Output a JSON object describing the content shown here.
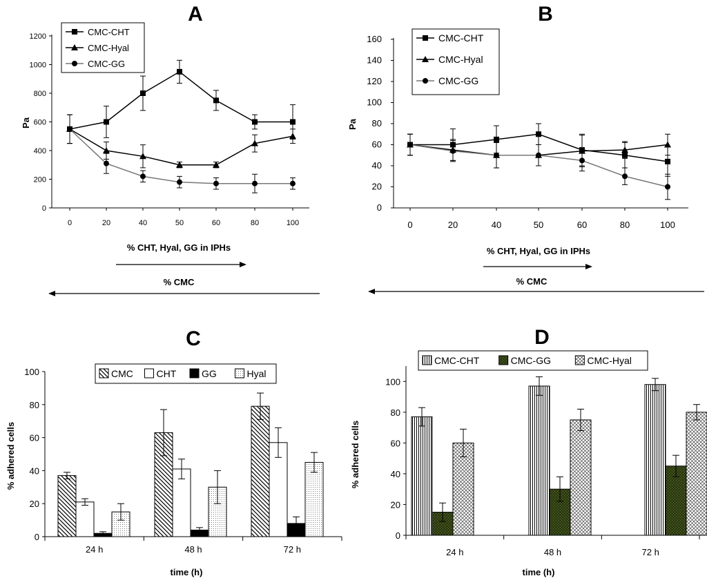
{
  "chart_data": [
    {
      "panel": "A",
      "type": "line",
      "title": "A",
      "xlabel": "% CHT, Hyal, GG in IPHs",
      "ylabel": "Pa",
      "secondary_xlabel": "% CMC",
      "x": [
        0,
        20,
        40,
        50,
        60,
        80,
        100
      ],
      "x_tick_labels": [
        "0",
        "20",
        "40",
        "50",
        "60",
        "80",
        "100"
      ],
      "ylim": [
        0,
        1200
      ],
      "y_ticks": [
        0,
        200,
        400,
        600,
        800,
        1000,
        1200
      ],
      "series": [
        {
          "name": "CMC-CHT",
          "marker": "square",
          "values": [
            550,
            600,
            800,
            950,
            750,
            600,
            600
          ],
          "errors": [
            100,
            110,
            120,
            80,
            70,
            50,
            120
          ]
        },
        {
          "name": "CMC-Hyal",
          "marker": "triangle",
          "values": [
            550,
            400,
            360,
            300,
            300,
            450,
            500
          ],
          "errors": [
            100,
            60,
            80,
            20,
            20,
            60,
            50
          ]
        },
        {
          "name": "CMC-GG",
          "marker": "circle",
          "values": [
            550,
            310,
            220,
            180,
            170,
            170,
            170
          ],
          "errors": [
            100,
            70,
            40,
            40,
            40,
            65,
            40
          ]
        }
      ]
    },
    {
      "panel": "B",
      "type": "line",
      "title": "B",
      "xlabel": "% CHT, Hyal, GG in IPHs",
      "ylabel": "Pa",
      "secondary_xlabel": "% CMC",
      "x": [
        0,
        20,
        40,
        50,
        60,
        80,
        100
      ],
      "x_tick_labels": [
        "0",
        "20",
        "40",
        "50",
        "60",
        "80",
        "100"
      ],
      "ylim": [
        0,
        160
      ],
      "y_ticks": [
        0,
        20,
        40,
        60,
        80,
        100,
        120,
        140,
        160
      ],
      "series": [
        {
          "name": "CMC-CHT",
          "marker": "square",
          "values": [
            60,
            60,
            65,
            70,
            55,
            50,
            44
          ],
          "errors": [
            10,
            15,
            13,
            10,
            15,
            12,
            14
          ]
        },
        {
          "name": "CMC-Hyal",
          "marker": "triangle",
          "values": [
            60,
            55,
            50,
            50,
            54,
            55,
            60
          ],
          "errors": [
            10,
            10,
            12,
            10,
            15,
            8,
            10
          ]
        },
        {
          "name": "CMC-GG",
          "marker": "circle",
          "values": [
            60,
            54,
            50,
            50,
            45,
            30,
            20
          ],
          "errors": [
            10,
            10,
            12,
            10,
            10,
            8,
            12
          ]
        }
      ]
    },
    {
      "panel": "C",
      "type": "bar",
      "title": "C",
      "xlabel": "time (h)",
      "ylabel": "% adhered cells",
      "categories": [
        "24 h",
        "48 h",
        "72 h"
      ],
      "ylim": [
        0,
        100
      ],
      "y_ticks": [
        0,
        20,
        40,
        60,
        80,
        100
      ],
      "series": [
        {
          "name": "CMC",
          "pattern": "diagonal",
          "values": [
            37,
            63,
            79
          ],
          "errors": [
            2,
            14,
            8
          ]
        },
        {
          "name": "CHT",
          "pattern": "white",
          "values": [
            21,
            41,
            57
          ],
          "errors": [
            2,
            6,
            9
          ]
        },
        {
          "name": "GG",
          "pattern": "black",
          "values": [
            2,
            4,
            8
          ],
          "errors": [
            1,
            1.5,
            4
          ]
        },
        {
          "name": "Hyal",
          "pattern": "dots",
          "values": [
            15,
            30,
            45
          ],
          "errors": [
            5,
            10,
            6
          ]
        }
      ]
    },
    {
      "panel": "D",
      "type": "bar",
      "title": "D",
      "xlabel": "time (h)",
      "ylabel": "% adhered cells",
      "categories": [
        "24 h",
        "48 h",
        "72 h"
      ],
      "ylim": [
        0,
        110
      ],
      "y_ticks": [
        0,
        20,
        40,
        60,
        80,
        100
      ],
      "series": [
        {
          "name": "CMC-CHT",
          "pattern": "vertical",
          "values": [
            77,
            97,
            98
          ],
          "errors": [
            6,
            6,
            4
          ]
        },
        {
          "name": "CMC-GG",
          "pattern": "darkgreen",
          "values": [
            15,
            30,
            45
          ],
          "errors": [
            6,
            8,
            7
          ]
        },
        {
          "name": "CMC-Hyal",
          "pattern": "crosshatch",
          "values": [
            60,
            75,
            80
          ],
          "errors": [
            9,
            7,
            5
          ]
        }
      ]
    }
  ]
}
